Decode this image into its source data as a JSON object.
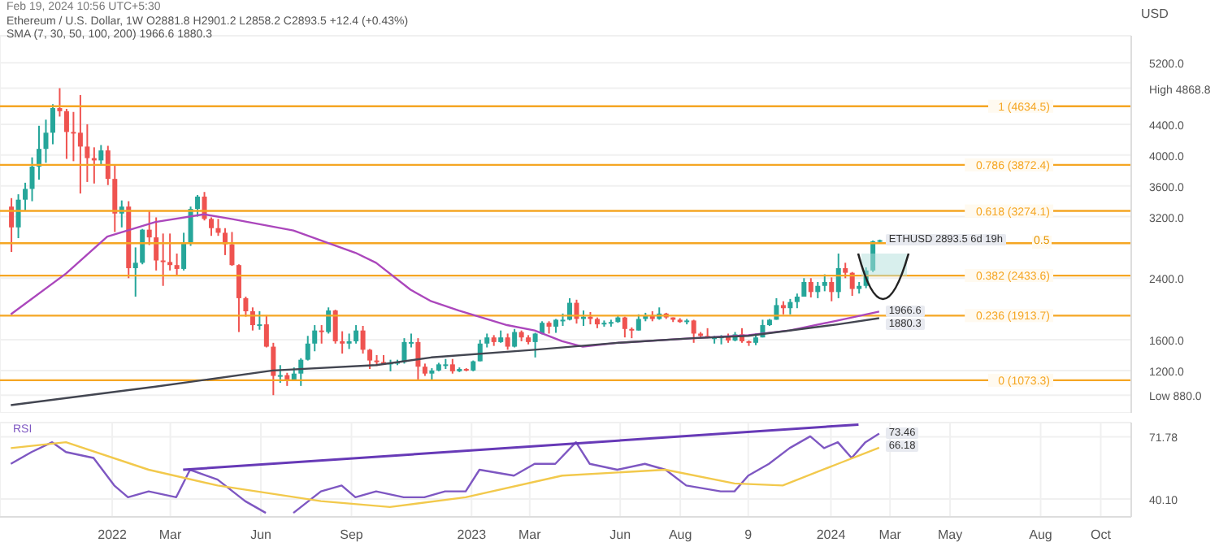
{
  "chart_data": [
    {
      "type": "candlestick",
      "ylabel": "USD",
      "grid": true,
      "tick_labels": "y",
      "annotations": [
        "Feb 19, 2024 10:56 UTC+5:30",
        "Ethereum / U.S. Dollar, 1W   O2881.8 H2901.2 L2858.2 C2893.5 +12.4 (+0.43%)",
        "SMA (7, 30, 50, 100, 200)  1966.6  1880.3",
        {
          "text": "ETHUSD 2893.5 6d 19h",
          "x": "2024-02-19",
          "y": 2893.5
        },
        {
          "text": "1966.6",
          "x": "2024-02-19",
          "y": 1966.6
        },
        {
          "text": "1880.3",
          "x": "2024-02-19",
          "y": 1880.3
        },
        {
          "text": "0.5",
          "x": "2024-08-02",
          "y": 2853.9
        }
      ],
      "xlim": [
        "2021-09-09",
        "2024-11-01"
      ],
      "ylim": [
        650,
        5550
      ],
      "yticks": [
        {
          "value": 880.0,
          "label": "Low 880.0"
        },
        {
          "value": 4868.8,
          "label": "High 4868.8"
        },
        {
          "value": 1200,
          "label": "1200.0"
        },
        {
          "value": 1600,
          "label": "1600.0"
        },
        {
          "value": 2400,
          "label": "2400.0"
        },
        {
          "value": 3200,
          "label": "3200.0"
        },
        {
          "value": 3600,
          "label": "3600.0"
        },
        {
          "value": 4000,
          "label": "4000.0"
        },
        {
          "value": 4400,
          "label": "4400.0"
        },
        {
          "value": 5200,
          "label": "5200.0"
        }
      ],
      "ref_lines": [
        {
          "axis": "y",
          "value": 4634.5,
          "label": "1 (4634.5)",
          "color": "#f5a623"
        },
        {
          "axis": "y",
          "value": 3872.4,
          "label": "0.786 (3872.4)",
          "color": "#f5a623"
        },
        {
          "axis": "y",
          "value": 3274.1,
          "label": "0.618 (3274.1)",
          "color": "#f5a623"
        },
        {
          "axis": "y",
          "value": 2853.9,
          "color": "#f5a623"
        },
        {
          "axis": "y",
          "value": 2433.6,
          "label": "0.382 (2433.6)",
          "color": "#f5a623"
        },
        {
          "axis": "y",
          "value": 1913.7,
          "label": "0.236 (1913.7)",
          "color": "#f5a623"
        },
        {
          "axis": "y",
          "value": 1073.3,
          "label": "0 (1073.3)",
          "color": "#f5a623"
        }
      ],
      "x": [
        "2021-09-20",
        "2021-09-27",
        "2021-10-04",
        "2021-10-11",
        "2021-10-18",
        "2021-10-25",
        "2021-11-01",
        "2021-11-08",
        "2021-11-15",
        "2021-11-22",
        "2021-11-29",
        "2021-12-06",
        "2021-12-13",
        "2021-12-20",
        "2021-12-27",
        "2022-01-03",
        "2022-01-10",
        "2022-01-17",
        "2022-01-24",
        "2022-01-31",
        "2022-02-07",
        "2022-02-14",
        "2022-02-21",
        "2022-02-28",
        "2022-03-07",
        "2022-03-14",
        "2022-03-21",
        "2022-03-28",
        "2022-04-04",
        "2022-04-11",
        "2022-04-18",
        "2022-04-25",
        "2022-05-02",
        "2022-05-09",
        "2022-05-16",
        "2022-05-23",
        "2022-05-30",
        "2022-06-06",
        "2022-06-13",
        "2022-06-20",
        "2022-06-27",
        "2022-07-04",
        "2022-07-11",
        "2022-07-18",
        "2022-07-25",
        "2022-08-01",
        "2022-08-08",
        "2022-08-15",
        "2022-08-22",
        "2022-08-29",
        "2022-09-05",
        "2022-09-12",
        "2022-09-19",
        "2022-09-26",
        "2022-10-03",
        "2022-10-10",
        "2022-10-17",
        "2022-10-24",
        "2022-10-31",
        "2022-11-07",
        "2022-11-14",
        "2022-11-21",
        "2022-11-28",
        "2022-12-05",
        "2022-12-12",
        "2022-12-19",
        "2022-12-26",
        "2023-01-02",
        "2023-01-09",
        "2023-01-16",
        "2023-01-23",
        "2023-01-30",
        "2023-02-06",
        "2023-02-13",
        "2023-02-20",
        "2023-02-27",
        "2023-03-06",
        "2023-03-13",
        "2023-03-20",
        "2023-03-27",
        "2023-04-03",
        "2023-04-10",
        "2023-04-17",
        "2023-04-24",
        "2023-05-01",
        "2023-05-08",
        "2023-05-15",
        "2023-05-22",
        "2023-05-29",
        "2023-06-05",
        "2023-06-12",
        "2023-06-19",
        "2023-06-26",
        "2023-07-03",
        "2023-07-10",
        "2023-07-17",
        "2023-07-24",
        "2023-07-31",
        "2023-08-07",
        "2023-08-14",
        "2023-08-21",
        "2023-08-28",
        "2023-09-04",
        "2023-09-11",
        "2023-09-18",
        "2023-09-25",
        "2023-10-02",
        "2023-10-09",
        "2023-10-16",
        "2023-10-23",
        "2023-10-30",
        "2023-11-06",
        "2023-11-13",
        "2023-11-20",
        "2023-11-27",
        "2023-12-04",
        "2023-12-11",
        "2023-12-18",
        "2023-12-25",
        "2024-01-01",
        "2024-01-08",
        "2024-01-15",
        "2024-01-22",
        "2024-01-29",
        "2024-02-05",
        "2024-02-12",
        "2024-02-19"
      ],
      "ohlc": [
        [
          3330,
          3440,
          2740,
          3060
        ],
        [
          3060,
          3490,
          2920,
          3420
        ],
        [
          3420,
          3640,
          3280,
          3560
        ],
        [
          3560,
          3970,
          3400,
          3850
        ],
        [
          3850,
          4380,
          3680,
          4080
        ],
        [
          4080,
          4460,
          3900,
          4290
        ],
        [
          4290,
          4660,
          4140,
          4610
        ],
        [
          4610,
          4868.8,
          4500,
          4570
        ],
        [
          4570,
          4600,
          3950,
          4300
        ],
        [
          4300,
          4560,
          3920,
          4290
        ],
        [
          4290,
          4780,
          3500,
          4110
        ],
        [
          4110,
          4400,
          3650,
          3960
        ],
        [
          3960,
          4100,
          3630,
          3930
        ],
        [
          3930,
          4130,
          3880,
          4060
        ],
        [
          4060,
          4120,
          3610,
          3690
        ],
        [
          3690,
          3860,
          3000,
          3240
        ],
        [
          3240,
          3410,
          3060,
          3330
        ],
        [
          3330,
          3400,
          2400,
          2530
        ],
        [
          2530,
          2800,
          2160,
          2600
        ],
        [
          2600,
          3040,
          2580,
          3030
        ],
        [
          3030,
          3280,
          2830,
          2930
        ],
        [
          2930,
          3190,
          2500,
          2630
        ],
        [
          2630,
          2980,
          2300,
          2610
        ],
        [
          2610,
          2980,
          2500,
          2570
        ],
        [
          2570,
          2720,
          2430,
          2520
        ],
        [
          2520,
          2990,
          2500,
          2860
        ],
        [
          2860,
          3330,
          2820,
          3300
        ],
        [
          3300,
          3480,
          3200,
          3460
        ],
        [
          3460,
          3520,
          3150,
          3170
        ],
        [
          3170,
          3190,
          2950,
          3050
        ],
        [
          3050,
          3170,
          2950,
          2990
        ],
        [
          2990,
          3050,
          2700,
          2840
        ],
        [
          2840,
          3000,
          2560,
          2570
        ],
        [
          2570,
          2580,
          1700,
          2140
        ],
        [
          2140,
          2160,
          1900,
          1970
        ],
        [
          1970,
          2020,
          1720,
          1790
        ],
        [
          1790,
          1970,
          1730,
          1800
        ],
        [
          1800,
          1920,
          1500,
          1510
        ],
        [
          1510,
          1560,
          880,
          1130
        ],
        [
          1130,
          1270,
          1040,
          1140
        ],
        [
          1140,
          1170,
          1000,
          1070
        ],
        [
          1070,
          1240,
          1070,
          1160
        ],
        [
          1160,
          1360,
          1000,
          1340
        ],
        [
          1340,
          1650,
          1330,
          1550
        ],
        [
          1550,
          1790,
          1450,
          1720
        ],
        [
          1720,
          1790,
          1550,
          1700
        ],
        [
          1700,
          2020,
          1680,
          1980
        ],
        [
          1980,
          1990,
          1550,
          1580
        ],
        [
          1580,
          1710,
          1420,
          1550
        ],
        [
          1550,
          1680,
          1480,
          1580
        ],
        [
          1580,
          1790,
          1550,
          1720
        ],
        [
          1720,
          1780,
          1420,
          1470
        ],
        [
          1470,
          1480,
          1220,
          1330
        ],
        [
          1330,
          1400,
          1260,
          1310
        ],
        [
          1310,
          1400,
          1280,
          1290
        ],
        [
          1290,
          1340,
          1190,
          1300
        ],
        [
          1300,
          1340,
          1270,
          1310
        ],
        [
          1310,
          1620,
          1290,
          1570
        ],
        [
          1570,
          1680,
          1500,
          1570
        ],
        [
          1570,
          1620,
          1070,
          1250
        ],
        [
          1250,
          1290,
          1130,
          1160
        ],
        [
          1160,
          1230,
          1080,
          1200
        ],
        [
          1200,
          1300,
          1190,
          1280
        ],
        [
          1280,
          1350,
          1220,
          1280
        ],
        [
          1280,
          1350,
          1160,
          1190
        ],
        [
          1190,
          1240,
          1180,
          1220
        ],
        [
          1220,
          1230,
          1190,
          1200
        ],
        [
          1200,
          1330,
          1190,
          1320
        ],
        [
          1320,
          1600,
          1320,
          1550
        ],
        [
          1550,
          1680,
          1500,
          1630
        ],
        [
          1630,
          1660,
          1520,
          1570
        ],
        [
          1570,
          1720,
          1560,
          1630
        ],
        [
          1630,
          1680,
          1470,
          1510
        ],
        [
          1510,
          1740,
          1500,
          1700
        ],
        [
          1700,
          1720,
          1580,
          1630
        ],
        [
          1630,
          1660,
          1540,
          1570
        ],
        [
          1570,
          1690,
          1370,
          1680
        ],
        [
          1680,
          1840,
          1670,
          1820
        ],
        [
          1820,
          1840,
          1680,
          1770
        ],
        [
          1770,
          1870,
          1690,
          1860
        ],
        [
          1860,
          1940,
          1780,
          1860
        ],
        [
          1860,
          2140,
          1850,
          2080
        ],
        [
          2080,
          2120,
          1810,
          1870
        ],
        [
          1870,
          1980,
          1780,
          1900
        ],
        [
          1900,
          1960,
          1800,
          1870
        ],
        [
          1870,
          1890,
          1750,
          1800
        ],
        [
          1800,
          1850,
          1770,
          1820
        ],
        [
          1820,
          1860,
          1770,
          1830
        ],
        [
          1830,
          1920,
          1820,
          1890
        ],
        [
          1890,
          1900,
          1630,
          1740
        ],
        [
          1740,
          1760,
          1620,
          1720
        ],
        [
          1720,
          1930,
          1720,
          1870
        ],
        [
          1870,
          1950,
          1840,
          1920
        ],
        [
          1920,
          1970,
          1840,
          1870
        ],
        [
          1870,
          2020,
          1860,
          1940
        ],
        [
          1940,
          1950,
          1870,
          1890
        ],
        [
          1890,
          1890,
          1830,
          1860
        ],
        [
          1860,
          1880,
          1820,
          1830
        ],
        [
          1830,
          1870,
          1800,
          1850
        ],
        [
          1850,
          1860,
          1560,
          1680
        ],
        [
          1680,
          1700,
          1630,
          1650
        ],
        [
          1650,
          1750,
          1620,
          1630
        ],
        [
          1630,
          1650,
          1550,
          1630
        ],
        [
          1630,
          1660,
          1540,
          1640
        ],
        [
          1640,
          1680,
          1560,
          1590
        ],
        [
          1590,
          1700,
          1580,
          1670
        ],
        [
          1670,
          1750,
          1560,
          1580
        ],
        [
          1580,
          1590,
          1520,
          1560
        ],
        [
          1560,
          1680,
          1530,
          1630
        ],
        [
          1630,
          1860,
          1630,
          1790
        ],
        [
          1790,
          1870,
          1780,
          1860
        ],
        [
          1860,
          2140,
          1860,
          2050
        ],
        [
          2050,
          2100,
          1930,
          2010
        ],
        [
          2010,
          2130,
          1930,
          2090
        ],
        [
          2090,
          2200,
          2010,
          2160
        ],
        [
          2160,
          2400,
          2160,
          2350
        ],
        [
          2350,
          2400,
          2150,
          2220
        ],
        [
          2220,
          2350,
          2140,
          2300
        ],
        [
          2300,
          2450,
          2230,
          2350
        ],
        [
          2350,
          2410,
          2100,
          2220
        ],
        [
          2220,
          2720,
          2140,
          2530
        ],
        [
          2530,
          2600,
          2400,
          2470
        ],
        [
          2470,
          2480,
          2170,
          2260
        ],
        [
          2260,
          2350,
          2200,
          2300
        ],
        [
          2300,
          2540,
          2270,
          2500
        ],
        [
          2500,
          2890,
          2480,
          2880
        ],
        [
          2881.8,
          2901.2,
          2858.2,
          2893.5
        ]
      ],
      "series": [
        {
          "type": "line",
          "color": "#ab47bc",
          "x": [
            "2021-09-20",
            "2021-11-15",
            "2021-12-27",
            "2022-02-14",
            "2022-04-04",
            "2022-05-02",
            "2022-07-04",
            "2022-09-05",
            "2022-09-26",
            "2022-10-31",
            "2022-11-21",
            "2022-12-19",
            "2023-01-16",
            "2023-02-06",
            "2023-03-06",
            "2023-04-03",
            "2023-04-24",
            "2023-05-29",
            "2023-08-14",
            "2023-10-09",
            "2023-11-20",
            "2024-01-08",
            "2024-02-19"
          ],
          "values": [
            1930,
            2460,
            2940,
            3130,
            3230,
            3170,
            3020,
            2730,
            2600,
            2250,
            2100,
            1980,
            1870,
            1790,
            1720,
            1580,
            1510,
            1560,
            1620,
            1660,
            1720,
            1850,
            1966.6
          ]
        },
        {
          "type": "line",
          "color": "#434651",
          "x": [
            "2021-09-20",
            "2022-02-14",
            "2022-06-13",
            "2022-09-26",
            "2022-11-21",
            "2023-03-06",
            "2023-05-29",
            "2023-08-14",
            "2023-10-09",
            "2024-01-08",
            "2024-02-19"
          ],
          "values": [
            750,
            990,
            1200,
            1270,
            1370,
            1470,
            1560,
            1620,
            1650,
            1800,
            1880.3
          ]
        }
      ]
    },
    {
      "type": "line",
      "grid": true,
      "annotations": [
        {
          "text": "73.46",
          "x": "2024-02-19",
          "y": 73.46
        },
        {
          "text": "66.18",
          "x": "2024-02-19",
          "y": 66.18
        }
      ],
      "xlim": [
        "2021-09-09",
        "2024-11-01"
      ],
      "ylim": [
        31,
        79
      ],
      "yticks": [
        {
          "value": 40.1,
          "label": "40.10"
        },
        {
          "value": 71.78,
          "label": "71.78"
        }
      ],
      "xticks": [
        {
          "value": "2022-01-01",
          "label": "2022"
        },
        {
          "value": "2022-03-01",
          "label": "Mar"
        },
        {
          "value": "2022-06-01",
          "label": "Jun"
        },
        {
          "value": "2022-09-01",
          "label": "Sep"
        },
        {
          "value": "2023-01-01",
          "label": "2023"
        },
        {
          "value": "2023-03-01",
          "label": "Mar"
        },
        {
          "value": "2023-06-01",
          "label": "Jun"
        },
        {
          "value": "2023-08-01",
          "label": "Aug"
        },
        {
          "value": "2023-10-09",
          "label": "9"
        },
        {
          "value": "2024-01-01",
          "label": "2024"
        },
        {
          "value": "2024-03-01",
          "label": "Mar"
        },
        {
          "value": "2024-05-01",
          "label": "May"
        },
        {
          "value": "2024-08-01",
          "label": "Aug"
        },
        {
          "value": "2024-10-01",
          "label": "Oct"
        }
      ],
      "series": [
        {
          "name": "RSI",
          "color": "#7e57c2",
          "x": [
            "2021-09-20",
            "2021-10-11",
            "2021-11-01",
            "2021-11-15",
            "2021-12-13",
            "2022-01-03",
            "2022-01-17",
            "2022-02-07",
            "2022-03-07",
            "2022-03-21",
            "2022-04-18",
            "2022-05-16",
            "2022-06-06",
            "2022-06-20",
            "2022-07-04",
            "2022-08-01",
            "2022-08-22",
            "2022-09-05",
            "2022-09-26",
            "2022-10-24",
            "2022-11-14",
            "2022-12-05",
            "2022-12-26",
            "2023-01-09",
            "2023-02-13",
            "2023-03-06",
            "2023-03-27",
            "2023-04-17",
            "2023-05-01",
            "2023-05-29",
            "2023-06-26",
            "2023-07-17",
            "2023-08-07",
            "2023-09-11",
            "2023-09-25",
            "2023-10-09",
            "2023-10-30",
            "2023-11-20",
            "2023-12-11",
            "2023-12-25",
            "2024-01-08",
            "2024-01-22",
            "2024-02-05",
            "2024-02-19"
          ],
          "values": [
            58,
            64,
            69,
            64,
            61,
            47,
            41,
            44,
            41,
            55,
            50,
            39,
            33,
            null,
            33,
            44,
            47,
            41,
            44,
            41,
            41,
            44,
            44,
            55,
            52,
            58,
            58,
            69,
            58,
            55,
            58,
            55,
            47,
            44,
            44,
            52,
            58,
            66,
            72,
            66,
            69,
            61,
            69,
            73.46
          ]
        },
        {
          "color": "#f2c94c",
          "x": [
            "2021-09-20",
            "2021-11-15",
            "2022-02-07",
            "2022-04-18",
            "2022-08-01",
            "2022-10-10",
            "2022-12-26",
            "2023-04-03",
            "2023-07-17",
            "2023-09-25",
            "2023-11-13",
            "2024-01-08",
            "2024-02-19"
          ],
          "values": [
            66,
            69,
            55,
            47,
            39,
            36,
            41,
            52,
            55,
            48,
            47,
            58,
            66.18
          ]
        },
        {
          "color": "#673ab7",
          "x": [
            "2022-03-14",
            "2024-01-29"
          ],
          "values": [
            55,
            78
          ]
        }
      ]
    }
  ]
}
